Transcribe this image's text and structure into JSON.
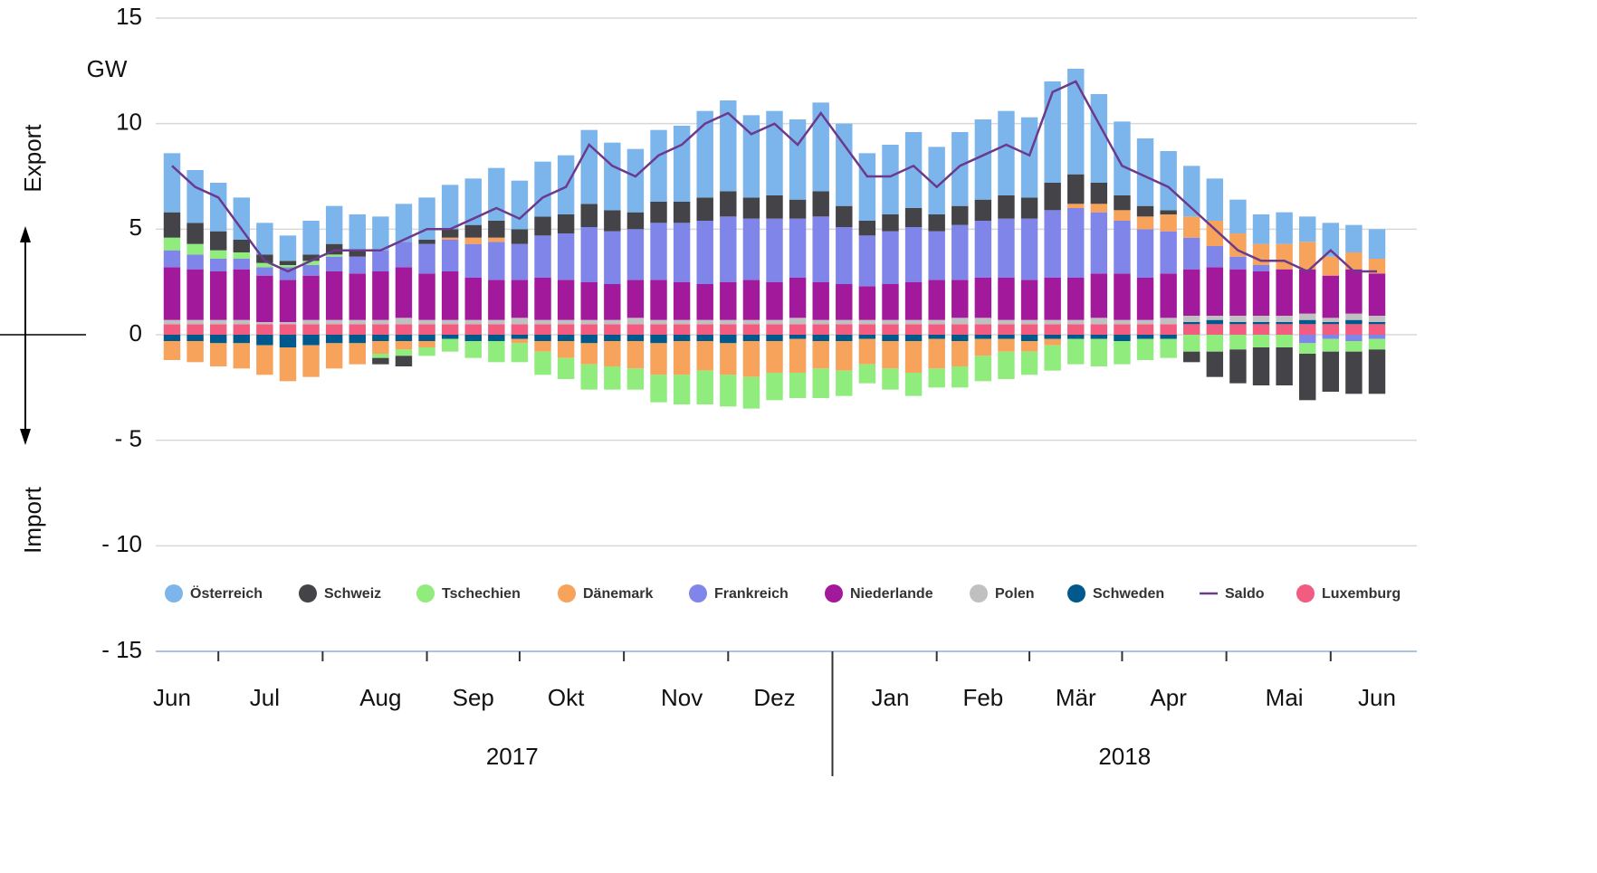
{
  "chart_data": {
    "type": "bar",
    "stacked": true,
    "unit": "GW",
    "side_labels": {
      "top": "Export",
      "bottom": "Import"
    },
    "categories": [
      "Jun",
      null,
      null,
      null,
      "Jul",
      null,
      null,
      null,
      null,
      "Aug",
      null,
      null,
      null,
      "Sep",
      null,
      null,
      null,
      "Okt",
      null,
      null,
      null,
      null,
      "Nov",
      null,
      null,
      null,
      "Dez",
      null,
      null,
      null,
      null,
      "Jan",
      null,
      null,
      null,
      "Feb",
      null,
      null,
      null,
      "Mär",
      null,
      null,
      null,
      "Apr",
      null,
      null,
      null,
      null,
      "Mai",
      null,
      null,
      null,
      "Jun"
    ],
    "year_labels": [
      "2017",
      "2018"
    ],
    "ylim": [
      -15,
      15
    ],
    "yticks": [
      {
        "value": -15,
        "label": "- 15"
      },
      {
        "value": -10,
        "label": "- 10"
      },
      {
        "value": -5,
        "label": "- 5"
      },
      0,
      5,
      10,
      15
    ],
    "grid": true,
    "legend": "bottom",
    "series": [
      {
        "name": "Österreich",
        "color": "#7cb5ec",
        "values": [
          2.8,
          2.5,
          2.3,
          2.0,
          1.5,
          1.2,
          1.6,
          1.8,
          1.7,
          1.6,
          1.8,
          2.0,
          2.1,
          2.2,
          2.5,
          2.3,
          2.6,
          2.8,
          3.5,
          3.2,
          3.0,
          3.4,
          3.6,
          4.1,
          4.3,
          3.9,
          4.0,
          3.8,
          4.2,
          3.9,
          3.2,
          3.3,
          3.6,
          3.2,
          3.5,
          3.8,
          4.0,
          3.8,
          4.8,
          5.0,
          4.2,
          3.5,
          3.2,
          2.8,
          2.4,
          2.0,
          1.6,
          1.4,
          1.5,
          1.2,
          1.6,
          1.3,
          1.4
        ]
      },
      {
        "name": "Schweiz",
        "color": "#434348",
        "values": [
          1.2,
          1.0,
          0.9,
          0.6,
          0.4,
          0.2,
          0.3,
          0.5,
          0.3,
          -0.3,
          -0.5,
          0.2,
          0.4,
          0.6,
          0.8,
          0.7,
          0.9,
          0.9,
          1.1,
          1.0,
          0.8,
          1.0,
          1.0,
          1.1,
          1.2,
          1.0,
          1.1,
          0.9,
          1.2,
          1.0,
          0.7,
          0.8,
          0.9,
          0.8,
          0.9,
          1.0,
          1.1,
          1.0,
          1.3,
          1.4,
          1.0,
          0.7,
          0.5,
          0.2,
          -0.5,
          -1.2,
          -1.6,
          -1.8,
          -1.8,
          -2.2,
          -1.9,
          -2.0,
          -2.1
        ]
      },
      {
        "name": "Tschechien",
        "color": "#90ed7d",
        "values": [
          0.6,
          0.5,
          0.4,
          0.3,
          0.2,
          0.1,
          0.2,
          0.1,
          0.0,
          -0.2,
          -0.3,
          -0.4,
          -0.6,
          -0.8,
          -1.0,
          -0.9,
          -1.1,
          -1.0,
          -1.2,
          -1.1,
          -1.0,
          -1.3,
          -1.4,
          -1.6,
          -1.5,
          -1.5,
          -1.3,
          -1.2,
          -1.4,
          -1.2,
          -0.9,
          -1.0,
          -1.1,
          -0.9,
          -1.0,
          -1.2,
          -1.3,
          -1.1,
          -1.2,
          -1.2,
          -1.3,
          -1.1,
          -1.0,
          -0.9,
          -0.8,
          -0.8,
          -0.7,
          -0.6,
          -0.6,
          -0.5,
          -0.6,
          -0.5,
          -0.5
        ]
      },
      {
        "name": "Dänemark",
        "color": "#f7a35c",
        "values": [
          -0.9,
          -1.0,
          -1.1,
          -1.2,
          -1.4,
          -1.6,
          -1.5,
          -1.2,
          -1.0,
          -0.6,
          -0.4,
          -0.3,
          0.1,
          0.3,
          0.2,
          -0.2,
          -0.5,
          -0.8,
          -1.0,
          -1.2,
          -1.3,
          -1.5,
          -1.6,
          -1.4,
          -1.5,
          -1.7,
          -1.5,
          -1.6,
          -1.3,
          -1.4,
          -1.2,
          -1.3,
          -1.5,
          -1.4,
          -1.2,
          -0.8,
          -0.6,
          -0.5,
          -0.3,
          0.2,
          0.4,
          0.5,
          0.6,
          0.8,
          1.0,
          1.2,
          1.1,
          1.0,
          1.2,
          1.3,
          0.9,
          0.8,
          0.7
        ]
      },
      {
        "name": "Frankreich",
        "color": "#8085e9",
        "values": [
          0.8,
          0.7,
          0.6,
          0.5,
          0.4,
          0.6,
          0.5,
          0.7,
          0.8,
          1.0,
          1.2,
          1.4,
          1.5,
          1.6,
          1.8,
          1.7,
          2.0,
          2.2,
          2.6,
          2.5,
          2.4,
          2.7,
          2.8,
          3.0,
          3.1,
          2.9,
          3.0,
          2.8,
          3.1,
          2.7,
          2.4,
          2.5,
          2.6,
          2.3,
          2.6,
          2.7,
          2.8,
          2.9,
          3.2,
          3.3,
          2.9,
          2.5,
          2.3,
          2.0,
          1.5,
          1.0,
          0.6,
          0.3,
          0.0,
          -0.4,
          -0.2,
          -0.3,
          -0.2
        ]
      },
      {
        "name": "Niederlande",
        "color": "#a3199b",
        "values": [
          2.5,
          2.4,
          2.3,
          2.4,
          2.2,
          2.0,
          2.1,
          2.3,
          2.2,
          2.3,
          2.4,
          2.2,
          2.3,
          2.0,
          1.9,
          1.8,
          2.0,
          1.9,
          1.8,
          1.7,
          1.8,
          1.9,
          1.8,
          1.7,
          1.8,
          1.9,
          1.8,
          1.9,
          1.8,
          1.7,
          1.6,
          1.7,
          1.8,
          1.9,
          1.8,
          1.9,
          2.0,
          1.9,
          2.0,
          2.0,
          2.1,
          2.2,
          2.0,
          2.1,
          2.2,
          2.3,
          2.2,
          2.1,
          2.2,
          2.1,
          2.0,
          2.1,
          2.0
        ]
      },
      {
        "name": "Polen",
        "color": "#c0c0c0",
        "values": [
          0.2,
          0.2,
          0.2,
          0.2,
          0.1,
          0.1,
          0.2,
          0.2,
          0.2,
          0.2,
          0.3,
          0.2,
          0.2,
          0.2,
          0.2,
          0.3,
          0.2,
          0.2,
          0.2,
          0.2,
          0.3,
          0.2,
          0.2,
          0.2,
          0.2,
          0.2,
          0.2,
          0.3,
          0.2,
          0.2,
          0.2,
          0.2,
          0.2,
          0.2,
          0.3,
          0.3,
          0.2,
          0.2,
          0.2,
          0.2,
          0.3,
          0.2,
          0.2,
          0.3,
          0.3,
          0.2,
          0.3,
          0.3,
          0.3,
          0.3,
          0.2,
          0.3,
          0.3
        ]
      },
      {
        "name": "Schweden",
        "color": "#00598c",
        "values": [
          -0.3,
          -0.3,
          -0.4,
          -0.4,
          -0.5,
          -0.6,
          -0.5,
          -0.4,
          -0.4,
          -0.3,
          -0.3,
          -0.3,
          -0.2,
          -0.3,
          -0.3,
          -0.2,
          -0.3,
          -0.3,
          -0.4,
          -0.3,
          -0.3,
          -0.4,
          -0.3,
          -0.3,
          -0.4,
          -0.3,
          -0.3,
          -0.2,
          -0.3,
          -0.3,
          -0.2,
          -0.3,
          -0.3,
          -0.2,
          -0.3,
          -0.2,
          -0.2,
          -0.3,
          -0.2,
          -0.2,
          -0.2,
          -0.3,
          -0.2,
          -0.2,
          0.1,
          0.2,
          0.1,
          0.1,
          0.1,
          0.2,
          0.1,
          0.2,
          0.1
        ]
      },
      {
        "name": "Saldo",
        "color": "#6b3a8c",
        "type": "line",
        "values": [
          8,
          7,
          6.5,
          5,
          3.5,
          3,
          3.5,
          4,
          4,
          4,
          4.5,
          5,
          5,
          5.5,
          6,
          5.5,
          6.5,
          7,
          9,
          8,
          7.5,
          8.5,
          9,
          10,
          10.5,
          9.5,
          10,
          9,
          10.5,
          9,
          7.5,
          7.5,
          8,
          7,
          8,
          8.5,
          9,
          8.5,
          11.5,
          12,
          10,
          8,
          7.5,
          7,
          6,
          5,
          4,
          3.5,
          3.5,
          3,
          4,
          3,
          3
        ]
      },
      {
        "name": "Luxemburg",
        "color": "#f15c80",
        "values": [
          0.5,
          0.5,
          0.5,
          0.5,
          0.5,
          0.5,
          0.5,
          0.5,
          0.5,
          0.5,
          0.5,
          0.5,
          0.5,
          0.5,
          0.5,
          0.5,
          0.5,
          0.5,
          0.5,
          0.5,
          0.5,
          0.5,
          0.5,
          0.5,
          0.5,
          0.5,
          0.5,
          0.5,
          0.5,
          0.5,
          0.5,
          0.5,
          0.5,
          0.5,
          0.5,
          0.5,
          0.5,
          0.5,
          0.5,
          0.5,
          0.5,
          0.5,
          0.5,
          0.5,
          0.5,
          0.5,
          0.5,
          0.5,
          0.5,
          0.5,
          0.5,
          0.5,
          0.5
        ]
      }
    ]
  }
}
